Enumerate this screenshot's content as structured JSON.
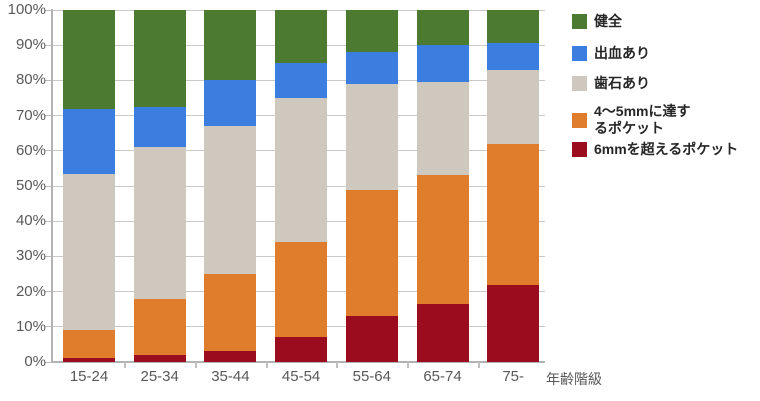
{
  "chart_data": {
    "type": "bar",
    "subtype": "stacked-percent",
    "title": "",
    "xlabel": "年齢階級",
    "ylabel": "",
    "ylim": [
      0,
      100
    ],
    "grid": true,
    "legend_position": "right",
    "categories": [
      "15-24",
      "25-34",
      "35-44",
      "45-54",
      "55-64",
      "65-74",
      "75-"
    ],
    "series": [
      {
        "name": "健全",
        "color": "#4d7a31",
        "values": [
          28,
          27.5,
          20,
          15,
          12,
          10,
          9.5
        ]
      },
      {
        "name": "出血あり",
        "color": "#3c7de0",
        "values": [
          18.5,
          11.5,
          13,
          10,
          9,
          10.5,
          7.5
        ]
      },
      {
        "name": "歯石あり",
        "color": "#cfc8be",
        "values": [
          44.5,
          43,
          42,
          41,
          30,
          26.5,
          21
        ]
      },
      {
        "name": "4〜5mmに達するポケット",
        "color": "#e07d2d",
        "values": [
          8,
          16,
          22,
          27,
          36,
          36.5,
          40
        ]
      },
      {
        "name": "6mmを超えるポケット",
        "color": "#9a0c1e",
        "values": [
          1,
          2,
          3,
          7,
          13,
          16.5,
          22
        ]
      }
    ],
    "stack_order_bottom_to_top": [
      "6mmを超えるポケット",
      "4〜5mmに達するポケット",
      "歯石あり",
      "出血あり",
      "健全"
    ],
    "y_tick_labels": [
      "0%",
      "10%",
      "20%",
      "30%",
      "40%",
      "50%",
      "60%",
      "70%",
      "80%",
      "90%",
      "100%"
    ]
  },
  "legend": {
    "items": [
      {
        "lines": [
          "健全"
        ]
      },
      {
        "lines": [
          "出血あり"
        ]
      },
      {
        "lines": [
          "歯石あり"
        ]
      },
      {
        "lines": [
          "4〜5mmに達す",
          "るポケット"
        ]
      },
      {
        "lines": [
          "6mmを超えるポケット"
        ]
      }
    ]
  },
  "colors": {
    "healthy_green": "#4d7a31",
    "bleeding_blue": "#3c7de0",
    "calculus_tan": "#cfc8be",
    "pocket_orange": "#e07d2d",
    "pocket_dark_red": "#9a0c1e",
    "gridline": "#c9c9c9",
    "axis": "#b3b3b3",
    "tick_label": "#595959",
    "legend_text": "#262626",
    "background": "#ffffff"
  }
}
